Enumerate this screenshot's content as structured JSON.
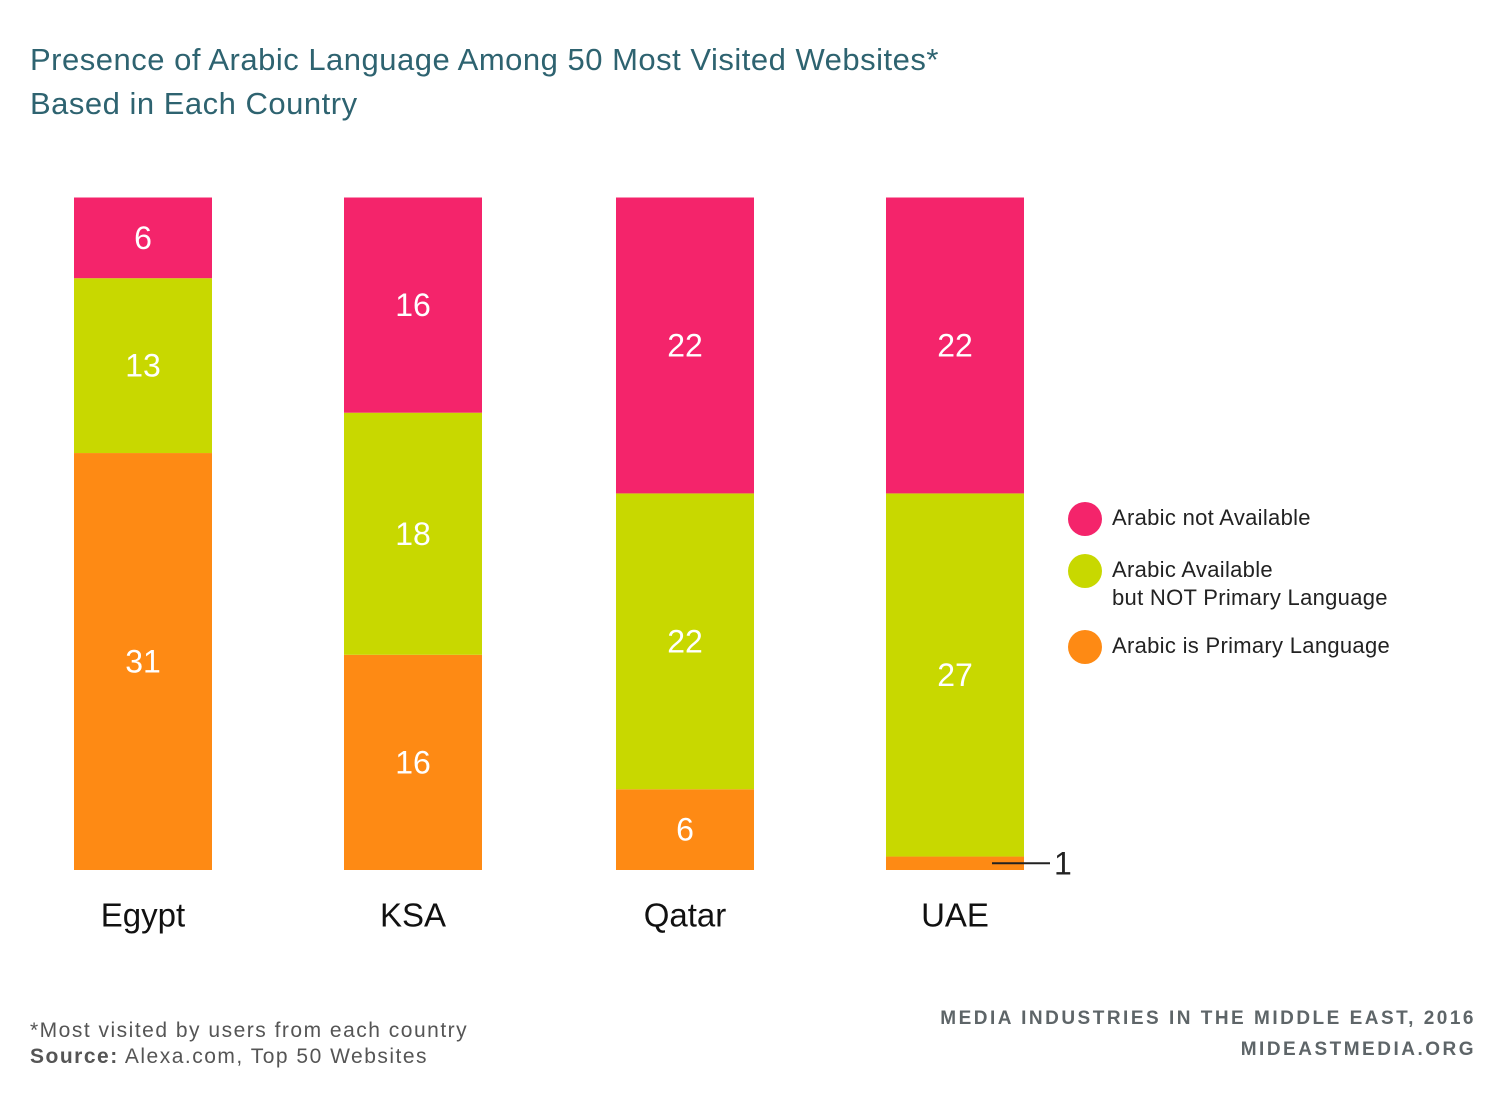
{
  "header": {
    "title_line1": "Presence of Arabic Language Among 50 Most Visited Websites*",
    "title_line2": "Based in Each Country"
  },
  "colors": {
    "not_available": "#f4246b",
    "available_not_primary": "#c8d800",
    "primary": "#fe8a14",
    "title": "#2e6370"
  },
  "legend": {
    "items": [
      {
        "key": "not_available",
        "label": "Arabic not Available"
      },
      {
        "key": "available_not_primary",
        "label": "Arabic Available\nbut NOT Primary Language"
      },
      {
        "key": "primary",
        "label": "Arabic is Primary Language"
      }
    ]
  },
  "chart_data": {
    "type": "bar",
    "stacked": true,
    "categories": [
      "Egypt",
      "KSA",
      "Qatar",
      "UAE"
    ],
    "series": [
      {
        "name": "Arabic is Primary Language",
        "key": "primary",
        "values": [
          31,
          16,
          6,
          1
        ]
      },
      {
        "name": "Arabic Available but NOT Primary Language",
        "key": "available_not_primary",
        "values": [
          13,
          18,
          22,
          27
        ]
      },
      {
        "name": "Arabic not Available",
        "key": "not_available",
        "values": [
          6,
          16,
          22,
          22
        ]
      }
    ],
    "title": "Presence of Arabic Language Among 50 Most Visited Websites* Based in Each Country",
    "xlabel": "",
    "ylabel": "",
    "grid": false,
    "legend_position": "right"
  },
  "footer": {
    "footnote": "*Most visited by users from each country",
    "source_label": "Source:",
    "source_text": " Alexa.com, Top 50 Websites",
    "publisher_line1": "MEDIA INDUSTRIES IN THE MIDDLE EAST, 2016",
    "publisher_line2": "MIDEASTMEDIA.ORG"
  }
}
